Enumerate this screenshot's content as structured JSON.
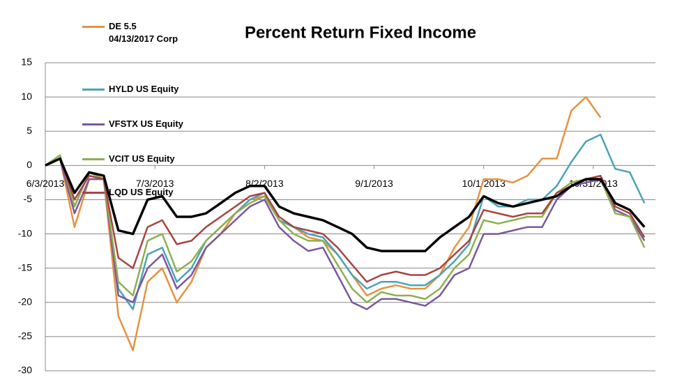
{
  "chart_data": {
    "type": "line",
    "title": "Percent Return Fixed Income",
    "x": [
      "6/3/2013",
      "6/7/2013",
      "6/11/2013",
      "6/15/2013",
      "6/19/2013",
      "6/23/2013",
      "6/27/2013",
      "7/1/2013",
      "7/5/2013",
      "7/9/2013",
      "7/13/2013",
      "7/17/2013",
      "7/21/2013",
      "7/25/2013",
      "7/29/2013",
      "8/2/2013",
      "8/6/2013",
      "8/10/2013",
      "8/14/2013",
      "8/18/2013",
      "8/22/2013",
      "8/26/2013",
      "8/30/2013",
      "9/3/2013",
      "9/7/2013",
      "9/11/2013",
      "9/15/2013",
      "9/19/2013",
      "9/23/2013",
      "9/27/2013",
      "10/1/2013",
      "10/5/2013",
      "10/9/2013",
      "10/13/2013",
      "10/17/2013",
      "10/21/2013",
      "10/25/2013",
      "10/29/2013",
      "11/2/2013",
      "11/6/2013",
      "11/10/2013",
      "11/14/2013"
    ],
    "xlim": [
      "6/3/2013",
      "11/17/2013"
    ],
    "xticks": [
      "6/3/2013",
      "7/3/2013",
      "8/2/2013",
      "9/1/2013",
      "10/1/2013",
      "10/31/2013"
    ],
    "ylim": [
      -30,
      15
    ],
    "yticks": [
      -30,
      -25,
      -20,
      -15,
      -10,
      -5,
      0,
      5,
      10,
      15
    ],
    "grid": true,
    "legend": "top-left",
    "series": [
      {
        "name": "DE 5.5\n04/13/2017 Corp",
        "color": "#e8913f",
        "values": [
          0,
          1,
          -9,
          -2,
          -2,
          -22,
          -27,
          -17,
          -15,
          -20,
          -17,
          -12,
          -10,
          -7,
          -5,
          -4.5,
          -8,
          -9,
          -10.5,
          -11,
          -13,
          -16,
          -19,
          -18,
          -17.5,
          -18,
          -18,
          -16,
          -12,
          -9,
          -2,
          -2,
          -2.5,
          -1.5,
          1,
          1,
          8,
          10,
          7,
          null,
          null,
          null
        ]
      },
      {
        "name": "HYLD US Equity",
        "color": "#4ba3b8",
        "values": [
          0,
          1,
          -6,
          -1,
          -2,
          -18,
          -21,
          -13,
          -12,
          -17,
          -15,
          -11,
          -9,
          -7,
          -5,
          -4,
          -8,
          -9,
          -10,
          -10.5,
          -13,
          -16,
          -18,
          -17,
          -17,
          -17.5,
          -17.5,
          -16,
          -14,
          -11.5,
          -4.5,
          -6,
          -6,
          -5,
          -5,
          -3,
          0.5,
          3.5,
          4.5,
          -0.5,
          -1,
          -5.5
        ]
      },
      {
        "name": "VFSTX US Equity",
        "color": "#7a57a0",
        "values": [
          0,
          1,
          -7,
          -2,
          -2,
          -19,
          -20,
          -15,
          -13,
          -18,
          -16,
          -12,
          -10,
          -8,
          -6,
          -5,
          -9,
          -11,
          -12.5,
          -12,
          -16,
          -20,
          -21,
          -19.5,
          -19.5,
          -20,
          -20.5,
          -19,
          -16,
          -15,
          -10,
          -10,
          -9.5,
          -9,
          -9,
          -5,
          -3,
          -2.5,
          -2,
          -6.5,
          -7.5,
          -11
        ]
      },
      {
        "name": "VCIT US Equity",
        "color": "#8db04e",
        "values": [
          0,
          1.5,
          -6,
          -1,
          -2,
          -17,
          -19,
          -11,
          -10,
          -15.5,
          -14,
          -11,
          -9,
          -7,
          -5.5,
          -4.5,
          -8,
          -10,
          -11,
          -11,
          -14.5,
          -18,
          -20,
          -18.5,
          -19,
          -19,
          -19.5,
          -18,
          -15,
          -13,
          -8,
          -8.5,
          -8,
          -7.5,
          -7.5,
          -4,
          -2.5,
          -2,
          -2,
          -7,
          -7.5,
          -12
        ]
      },
      {
        "name": "LQD US Equity",
        "color": "#a84443",
        "values": [
          0,
          1,
          -5,
          -1.5,
          -2,
          -13.5,
          -15,
          -9,
          -8,
          -11.5,
          -11,
          -9,
          -7.5,
          -6,
          -4.5,
          -4,
          -7.5,
          -9,
          -9.5,
          -10,
          -12,
          -14.5,
          -17,
          -16,
          -15.5,
          -16,
          -16,
          -15,
          -13,
          -11,
          -6.5,
          -7,
          -7.5,
          -7,
          -7,
          -4,
          -3,
          -2,
          -1.5,
          -6,
          -7,
          -10.5
        ]
      },
      {
        "color": "#000000",
        "values": [
          0,
          1,
          -4,
          -1,
          -1.5,
          -9.5,
          -10,
          -5,
          -4.5,
          -7.5,
          -7.5,
          -7,
          -5.5,
          -4,
          -3,
          -3,
          -6,
          -7,
          -7.5,
          -8,
          -9,
          -10,
          -12,
          -12.5,
          -12.5,
          -12.5,
          -12.5,
          -10.5,
          -9,
          -7.5,
          -4.5,
          -5.5,
          -6,
          -5.5,
          -5,
          -4.5,
          -3,
          -2,
          -2,
          -5.5,
          -6.5,
          -9
        ]
      }
    ]
  }
}
